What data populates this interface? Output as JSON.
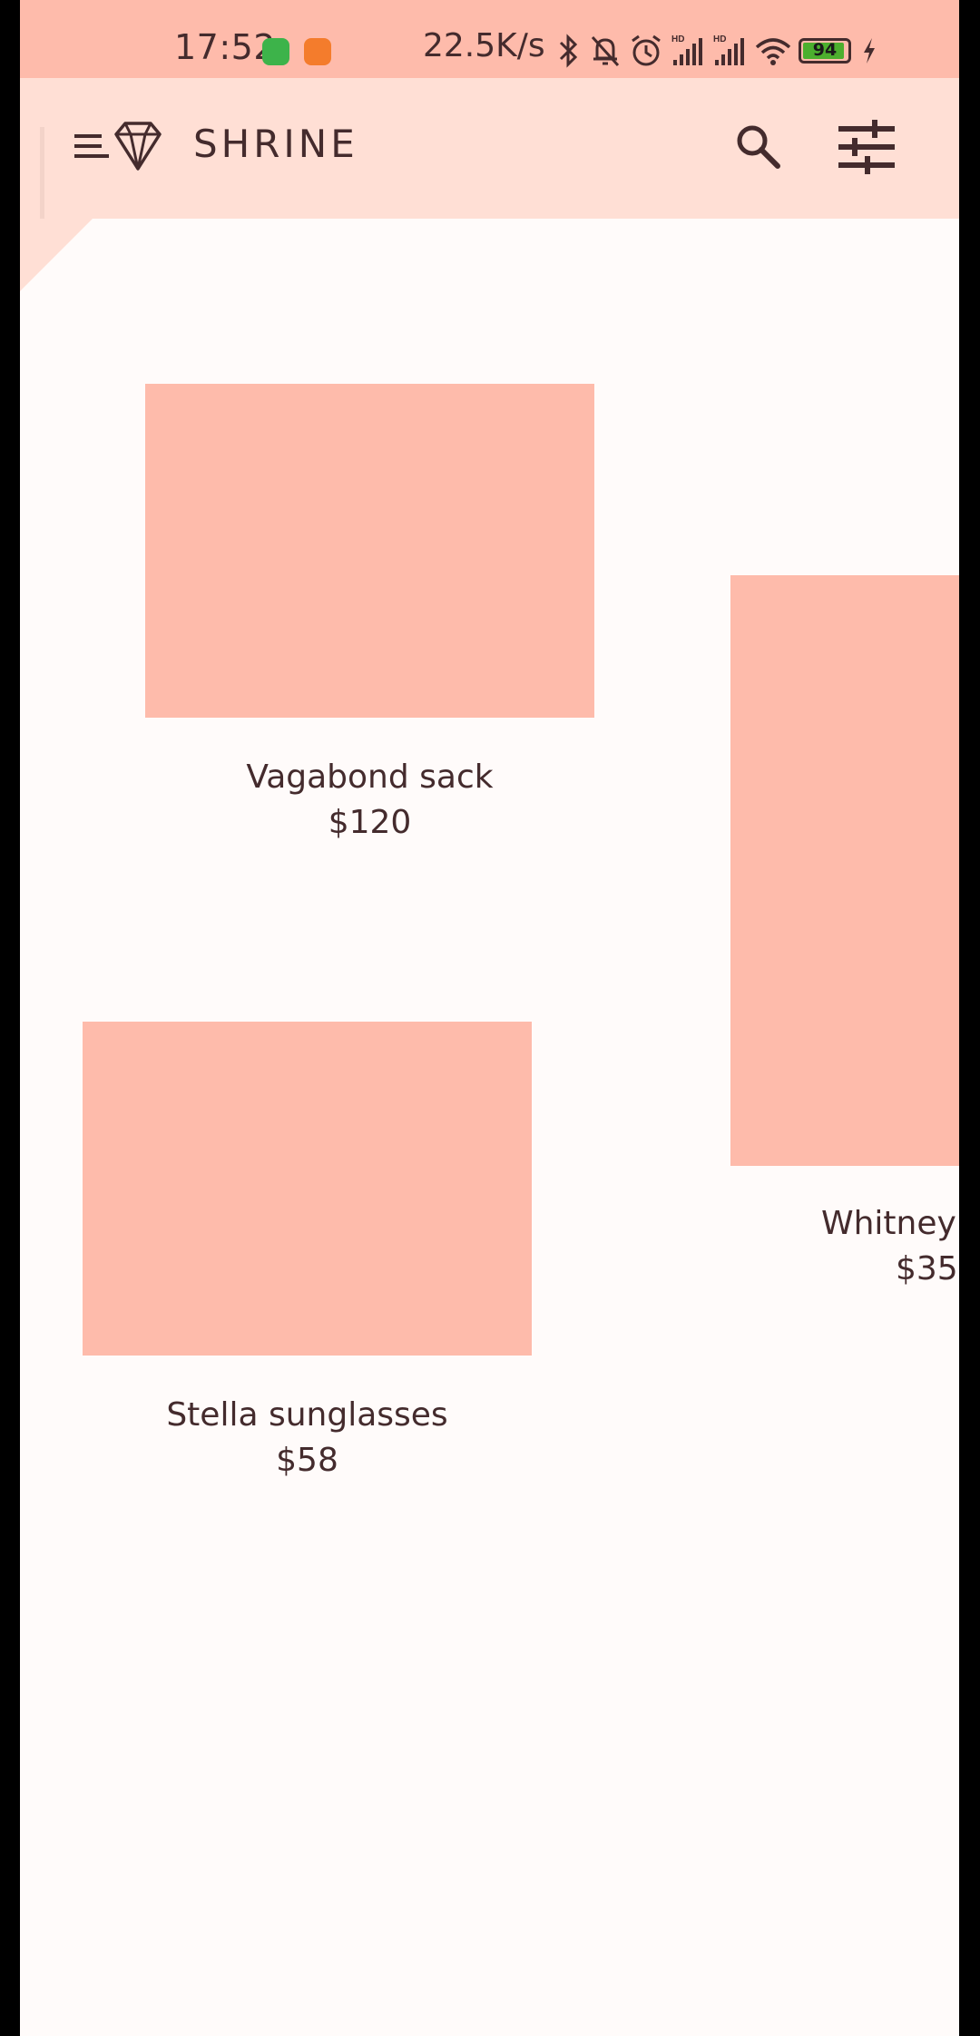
{
  "status_bar": {
    "time": "17:52",
    "network_speed": "22.5K/s",
    "battery_level": "94",
    "battery_fraction": 0.94,
    "icons": [
      "bluetooth-icon",
      "mute-bell-icon",
      "alarm-icon",
      "signal-hd-icon",
      "signal-hd-icon",
      "wifi-icon",
      "battery-icon",
      "charging-icon"
    ]
  },
  "app_bar": {
    "title": "SHRINE",
    "menu_icon": "menu-icon",
    "logo_icon": "diamond-logo-icon",
    "search_icon": "search-icon",
    "filter_icon": "tune-icon"
  },
  "colors": {
    "status_bar_bg": "#FEBBAB",
    "app_bar_bg": "#FFDFD5",
    "surface": "#FFFBFA",
    "product_placeholder": "#FEBBAB",
    "text": "#442B2D"
  },
  "products": [
    {
      "name": "Vagabond sack",
      "price": "$120"
    },
    {
      "name": "Whitney",
      "price": "$35"
    },
    {
      "name": "Stella sunglasses",
      "price": "$58"
    }
  ]
}
